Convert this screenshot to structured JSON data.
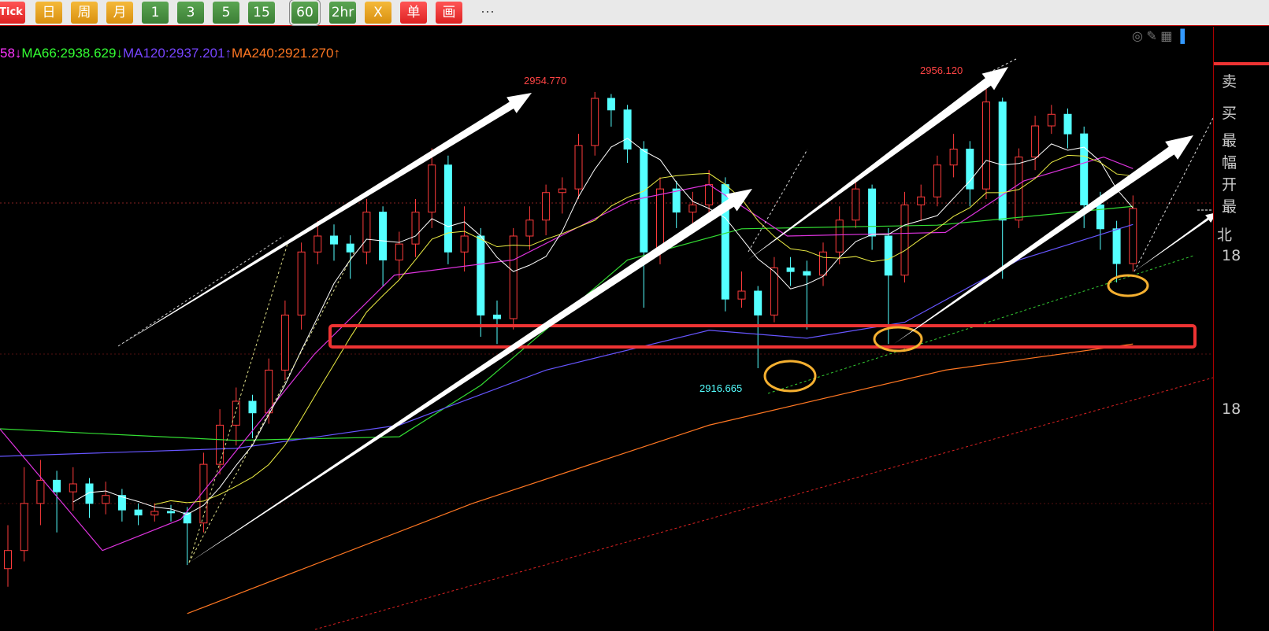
{
  "toolbar": {
    "buttons": [
      {
        "label": "Tick",
        "style": "red"
      },
      {
        "label": "日",
        "style": "org"
      },
      {
        "label": "周",
        "style": "org"
      },
      {
        "label": "月",
        "style": "org"
      },
      {
        "label": "1",
        "style": "grn"
      },
      {
        "label": "3",
        "style": "grn"
      },
      {
        "label": "5",
        "style": "grn"
      },
      {
        "label": "15",
        "style": "grn"
      },
      {
        "label": "60",
        "style": "grn",
        "selected": true
      },
      {
        "label": "2hr",
        "style": "grn"
      },
      {
        "label": "X",
        "style": "org"
      },
      {
        "label": "单",
        "style": "red"
      },
      {
        "label": "画",
        "style": "red"
      }
    ],
    "more": "···"
  },
  "ma_legend": [
    {
      "text": "58↓",
      "color": "#ff33ff"
    },
    {
      "text": "MA66:2938.629↓",
      "color": "#33ff33"
    },
    {
      "text": "MA120:2937.201↑",
      "color": "#7744ff"
    },
    {
      "text": "MA240:2921.270↑",
      "color": "#ff7722"
    }
  ],
  "chart_tools": [
    "eye-off-icon",
    "pencil-icon",
    "grid-icon",
    "panel-icon"
  ],
  "right_panel": {
    "labels": [
      "卖",
      "买",
      "最",
      "幅",
      "开",
      "最",
      "北",
      "18",
      "18"
    ]
  },
  "chart_data": {
    "type": "candlestick",
    "colors": {
      "up": "#ff3b3b",
      "down": "#54ffff"
    },
    "candles": [
      [
        2889,
        2895,
        2886.5,
        2891.5
      ],
      [
        2891.5,
        2903,
        2890,
        2898.0
      ],
      [
        2898,
        2904,
        2895,
        2901.2
      ],
      [
        2901.2,
        2902.5,
        2894,
        2899.6
      ],
      [
        2899.6,
        2903,
        2897,
        2900.7
      ],
      [
        2900.7,
        2901.5,
        2896,
        2898.0
      ],
      [
        2898,
        2901,
        2896.5,
        2899.1
      ],
      [
        2899.1,
        2900,
        2895.5,
        2897.1
      ],
      [
        2897.1,
        2898,
        2895,
        2896.4
      ],
      [
        2896.4,
        2898,
        2895.5,
        2896.9
      ],
      [
        2896.9,
        2897.8,
        2895.5,
        2896.7
      ],
      [
        2896.7,
        2897.5,
        2889.5,
        2895.3
      ],
      [
        2895.3,
        2905,
        2894,
        2903.4
      ],
      [
        2903.4,
        2911,
        2902,
        2908.8
      ],
      [
        2908.8,
        2914,
        2906,
        2912.1
      ],
      [
        2912.1,
        2913,
        2907,
        2910.5
      ],
      [
        2910.5,
        2918,
        2909,
        2916.4
      ],
      [
        2916.4,
        2926,
        2915,
        2924.0
      ],
      [
        2924,
        2934,
        2922,
        2932.7
      ],
      [
        2932.7,
        2937,
        2931,
        2934.9
      ],
      [
        2934.9,
        2936.5,
        2931.5,
        2933.8
      ],
      [
        2933.8,
        2935,
        2929,
        2932.7
      ],
      [
        2932.7,
        2940,
        2931,
        2938.2
      ],
      [
        2938.2,
        2939,
        2928,
        2931.6
      ],
      [
        2931.6,
        2935.5,
        2929,
        2933.8
      ],
      [
        2933.8,
        2940,
        2932,
        2938.2
      ],
      [
        2938.2,
        2947,
        2936,
        2944.7
      ],
      [
        2944.7,
        2946,
        2931,
        2932.7
      ],
      [
        2932.7,
        2939,
        2930,
        2934.9
      ],
      [
        2934.9,
        2936,
        2921,
        2924.0
      ],
      [
        2924,
        2926,
        2920,
        2923.5
      ],
      [
        2923.5,
        2936,
        2922,
        2934.9
      ],
      [
        2934.9,
        2939,
        2933,
        2937.1
      ],
      [
        2937.1,
        2942,
        2935,
        2940.9
      ],
      [
        2940.9,
        2943,
        2938,
        2941.4
      ],
      [
        2941.4,
        2949,
        2940,
        2947.4
      ],
      [
        2947.4,
        2954.77,
        2946,
        2953.9
      ],
      [
        2953.9,
        2954.5,
        2950,
        2952.3
      ],
      [
        2952.3,
        2953,
        2945,
        2946.9
      ],
      [
        2946.9,
        2948,
        2925,
        2932.7
      ],
      [
        2932.7,
        2943,
        2931,
        2941.4
      ],
      [
        2941.4,
        2942.5,
        2936,
        2938.2
      ],
      [
        2938.2,
        2941,
        2936.5,
        2939.2
      ],
      [
        2939.2,
        2944,
        2938,
        2942.0
      ],
      [
        2942,
        2943,
        2924.5,
        2926.2
      ],
      [
        2926.2,
        2930,
        2925,
        2927.3
      ],
      [
        2927.3,
        2928,
        2916.665,
        2924.0
      ],
      [
        2924,
        2932,
        2923,
        2930.5
      ],
      [
        2930.5,
        2932,
        2928,
        2930.0
      ],
      [
        2930,
        2931.5,
        2922,
        2929.5
      ],
      [
        2929.5,
        2934,
        2928,
        2932.7
      ],
      [
        2932.7,
        2939,
        2931,
        2937.1
      ],
      [
        2937.1,
        2943,
        2936,
        2941.4
      ],
      [
        2941.4,
        2942,
        2933,
        2934.9
      ],
      [
        2934.9,
        2936,
        2920,
        2929.5
      ],
      [
        2929.5,
        2941,
        2928.5,
        2939.2
      ],
      [
        2939.2,
        2942,
        2937,
        2940.3
      ],
      [
        2940.3,
        2946,
        2939,
        2944.7
      ],
      [
        2944.7,
        2949,
        2943,
        2946.9
      ],
      [
        2946.9,
        2948,
        2939,
        2941.4
      ],
      [
        2941.4,
        2956.12,
        2940,
        2953.4
      ],
      [
        2953.4,
        2954,
        2929,
        2937.1
      ],
      [
        2937.1,
        2947,
        2936,
        2945.8
      ],
      [
        2945.8,
        2951.5,
        2944,
        2950.1
      ],
      [
        2950.1,
        2953,
        2949,
        2951.7
      ],
      [
        2951.7,
        2952.5,
        2947,
        2949.0
      ],
      [
        2949,
        2950,
        2936,
        2939.2
      ],
      [
        2939.2,
        2941,
        2933,
        2935.9
      ],
      [
        2935.9,
        2937,
        2928.5,
        2931.1
      ],
      [
        2931.1,
        2940.5,
        2930,
        2938.7
      ]
    ],
    "ma_lines": [
      {
        "name": "MA66",
        "color": "#33dd33",
        "points": [
          [
            -0.5,
            2908.3
          ],
          [
            14,
            2906.7
          ],
          [
            24,
            2907.2
          ],
          [
            29,
            2914.3
          ],
          [
            38,
            2931.6
          ],
          [
            45,
            2935.9
          ],
          [
            57,
            2936.4
          ],
          [
            69,
            2939.0
          ]
        ]
      },
      {
        "name": "MA120",
        "color": "#6655ff",
        "points": [
          [
            -0.5,
            2904.5
          ],
          [
            14,
            2905.6
          ],
          [
            24,
            2908.8
          ],
          [
            33,
            2916.4
          ],
          [
            43,
            2921.9
          ],
          [
            49,
            2920.8
          ],
          [
            55,
            2923.0
          ],
          [
            62,
            2931.6
          ],
          [
            69,
            2936.5
          ]
        ]
      },
      {
        "name": "MA240",
        "color": "#ff7722",
        "points": [
          [
            11,
            2882.8
          ],
          [
            28.5,
            2898.0
          ],
          [
            43,
            2908.8
          ],
          [
            57.5,
            2916.4
          ],
          [
            69,
            2920.0
          ]
        ]
      },
      {
        "color": "#dd33dd",
        "points": [
          [
            -0.5,
            2908.3
          ],
          [
            5.8,
            2891.5
          ],
          [
            10.6,
            2895.8
          ],
          [
            18.8,
            2918.6
          ],
          [
            23.7,
            2929.5
          ],
          [
            31,
            2931.6
          ],
          [
            38.2,
            2939.8
          ],
          [
            43,
            2942.0
          ],
          [
            47.8,
            2934.9
          ],
          [
            57.5,
            2935.4
          ],
          [
            62.3,
            2942.5
          ],
          [
            67.2,
            2945.8
          ],
          [
            69,
            2944.2
          ]
        ]
      }
    ],
    "short_ma_periods": [
      5,
      10
    ],
    "short_ma_colors": [
      "#ffffff",
      "#eeee44"
    ],
    "annotations": {
      "high1": "2954.770",
      "high2": "2956.120",
      "low1": "2916.665"
    }
  }
}
